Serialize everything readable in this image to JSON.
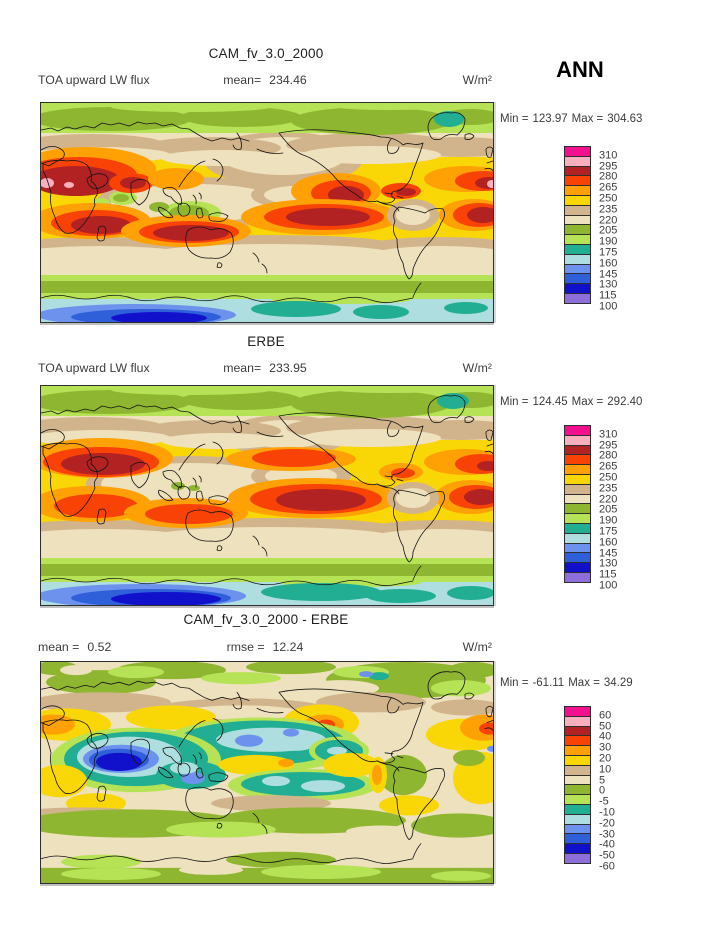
{
  "season": "ANN",
  "palette_note": "16 fill colors, top to bottom",
  "panels": [
    {
      "title": "CAM_fv_3.0_2000",
      "variable": "TOA upward LW flux",
      "mean_label": "mean=",
      "mean": "234.46",
      "units": "W/m²",
      "min_label": "Min =",
      "min": "123.97",
      "max_label": "Max =",
      "max": "304.63",
      "colorbar": {
        "labels": [
          "310",
          "295",
          "280",
          "265",
          "250",
          "235",
          "220",
          "205",
          "190",
          "175",
          "160",
          "145",
          "130",
          "115",
          "100"
        ],
        "colors": [
          "#F2108E",
          "#F9AFBE",
          "#B22222",
          "#F94306",
          "#FFA005",
          "#F9D606",
          "#D2B48C",
          "#EEE1BD",
          "#8FB631",
          "#B6E356",
          "#21AE92",
          "#AEDEDF",
          "#6C92EE",
          "#2F5FD9",
          "#1111CB",
          "#8E6FD9"
        ]
      }
    },
    {
      "title": "ERBE",
      "variable": "TOA upward LW flux",
      "mean_label": "mean=",
      "mean": "233.95",
      "units": "W/m²",
      "min_label": "Min =",
      "min": "124.45",
      "max_label": "Max =",
      "max": "292.40",
      "colorbar": {
        "labels": [
          "310",
          "295",
          "280",
          "265",
          "250",
          "235",
          "220",
          "205",
          "190",
          "175",
          "160",
          "145",
          "130",
          "115",
          "100"
        ],
        "colors": [
          "#F2108E",
          "#F9AFBE",
          "#B22222",
          "#F94306",
          "#FFA005",
          "#F9D606",
          "#D2B48C",
          "#EEE1BD",
          "#8FB631",
          "#B6E356",
          "#21AE92",
          "#AEDEDF",
          "#6C92EE",
          "#2F5FD9",
          "#1111CB",
          "#8E6FD9"
        ]
      }
    },
    {
      "title": "CAM_fv_3.0_2000 - ERBE",
      "mean_label": "mean =",
      "mean": "0.52",
      "rmse_label": "rmse =",
      "rmse": "12.24",
      "units": "W/m²",
      "min_label": "Min =",
      "min": "-61.11",
      "max_label": "Max =",
      "max": "34.29",
      "colorbar": {
        "labels": [
          "60",
          "50",
          "40",
          "30",
          "20",
          "10",
          "5",
          "0",
          "-5",
          "-10",
          "-20",
          "-30",
          "-40",
          "-50",
          "-60"
        ],
        "colors": [
          "#F2108E",
          "#F9AFBE",
          "#B22222",
          "#F94306",
          "#FFA005",
          "#F9D606",
          "#D2B48C",
          "#EEE1BD",
          "#8FB631",
          "#B6E356",
          "#21AE92",
          "#AEDEDF",
          "#6C92EE",
          "#2F5FD9",
          "#1111CB",
          "#8E6FD9"
        ]
      }
    }
  ],
  "chart_data": [
    {
      "type": "heatmap",
      "subtype": "global lat-lon filled contour map",
      "title": "CAM_fv_3.0_2000",
      "variable": "TOA upward LW flux",
      "season": "ANN",
      "units": "W/m²",
      "mean": 234.46,
      "min": 123.97,
      "max": 304.63,
      "contour_levels": [
        100,
        115,
        130,
        145,
        160,
        175,
        190,
        205,
        220,
        235,
        250,
        265,
        280,
        295,
        310
      ],
      "palette_top_to_bottom": [
        "#F2108E",
        "#F9AFBE",
        "#B22222",
        "#F94306",
        "#FFA005",
        "#F9D606",
        "#D2B48C",
        "#EEE1BD",
        "#8FB631",
        "#B6E356",
        "#21AE92",
        "#AEDEDF",
        "#6C92EE",
        "#2F5FD9",
        "#1111CB",
        "#8E6FD9"
      ],
      "legend_position": "right",
      "pattern": "high OLR (red, 265-300) over subtropical deserts and oceans; beige 205-235 midlatitudes and tropical warm pool; green 175-205 high latitudes; blue/purple minimum 100-160 over Antarctica"
    },
    {
      "type": "heatmap",
      "subtype": "global lat-lon filled contour map",
      "title": "ERBE",
      "variable": "TOA upward LW flux",
      "season": "ANN",
      "units": "W/m²",
      "mean": 233.95,
      "min": 124.45,
      "max": 292.4,
      "contour_levels": [
        100,
        115,
        130,
        145,
        160,
        175,
        190,
        205,
        220,
        235,
        250,
        265,
        280,
        295,
        310
      ],
      "palette_top_to_bottom": [
        "#F2108E",
        "#F9AFBE",
        "#B22222",
        "#F94306",
        "#FFA005",
        "#F9D606",
        "#D2B48C",
        "#EEE1BD",
        "#8FB631",
        "#B6E356",
        "#21AE92",
        "#AEDEDF",
        "#6C92EE",
        "#2F5FD9",
        "#1111CB",
        "#8E6FD9"
      ],
      "legend_position": "right",
      "pattern": "same field from ERBE observations; dark red maxima over Arabia and southeast Pacific; blue minimum over Antarctica"
    },
    {
      "type": "heatmap",
      "subtype": "global lat-lon filled contour difference map",
      "title": "CAM_fv_3.0_2000 - ERBE",
      "season": "ANN",
      "units": "W/m²",
      "mean": 0.52,
      "rmse": 12.24,
      "min": -61.11,
      "max": 34.29,
      "contour_levels": [
        -60,
        -50,
        -40,
        -30,
        -20,
        -10,
        -5,
        0,
        5,
        10,
        20,
        30,
        40,
        50,
        60
      ],
      "palette_top_to_bottom": [
        "#F2108E",
        "#F9AFBE",
        "#B22222",
        "#F94306",
        "#FFA005",
        "#F9D606",
        "#D2B48C",
        "#EEE1BD",
        "#8FB631",
        "#B6E356",
        "#21AE92",
        "#AEDEDF",
        "#6C92EE",
        "#2F5FD9",
        "#1111CB",
        "#8E6FD9"
      ],
      "legend_position": "right",
      "pattern": "mostly beige (0 to 5); strong negative (blue, to -60) over Indian Ocean / warm pool and tropical Pacific convergence zones; yellow-orange positive patches (10-30) in subtropics; green -5 to -10 bands at high latitudes"
    }
  ]
}
